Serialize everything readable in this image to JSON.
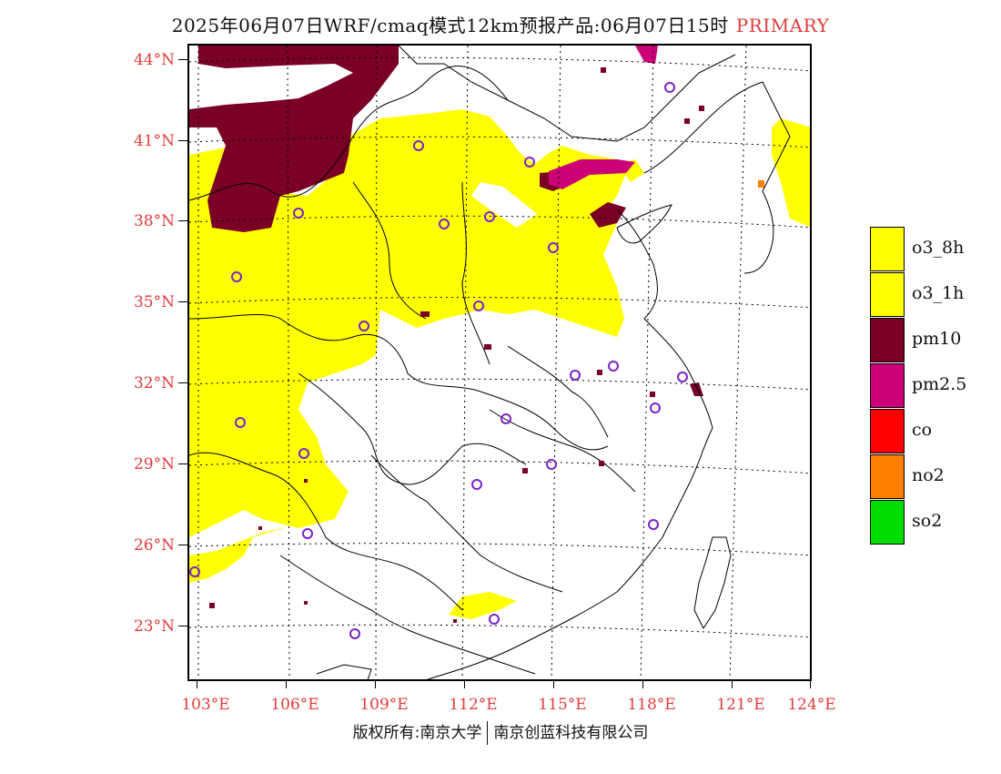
{
  "title": {
    "main": "2025年06月07日WRF/cmaq模式12km预报产品:06月07日15时",
    "tag": "PRIMARY"
  },
  "axes": {
    "lat_labels": [
      "44°N",
      "41°N",
      "38°N",
      "35°N",
      "32°N",
      "29°N",
      "26°N",
      "23°N"
    ],
    "lon_labels": [
      "103°E",
      "106°E",
      "109°E",
      "112°E",
      "115°E",
      "118°E",
      "121°E",
      "124°E"
    ]
  },
  "legend": [
    {
      "label": "o3_8h",
      "color": "#ffff00"
    },
    {
      "label": "o3_1h",
      "color": "#ffff00"
    },
    {
      "label": "pm10",
      "color": "#7a0026"
    },
    {
      "label": "pm2.5",
      "color": "#cc0077"
    },
    {
      "label": "co",
      "color": "#ff0000"
    },
    {
      "label": "no2",
      "color": "#ff7f00"
    },
    {
      "label": "so2",
      "color": "#00dd00"
    }
  ],
  "copyright": {
    "left": "版权所有:南京大学",
    "right": "南京创蓝科技有限公司"
  }
}
